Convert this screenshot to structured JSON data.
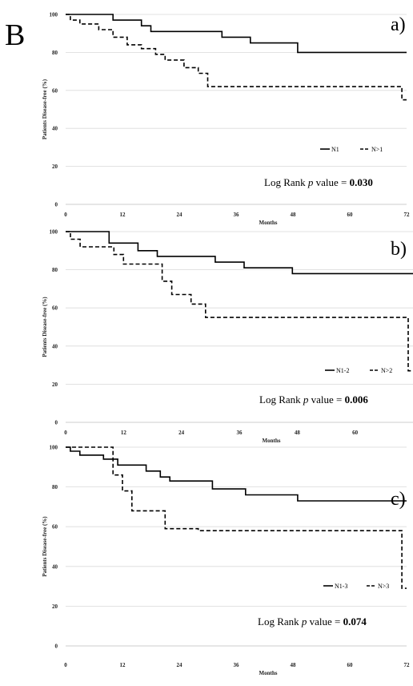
{
  "figure": {
    "label": "B"
  },
  "chart_data": [
    {
      "type": "line",
      "panel_label": "a)",
      "xlabel": "Months",
      "ylabel": "Patients Disease-free (%)",
      "xlim": [
        0,
        72
      ],
      "ylim": [
        0,
        100
      ],
      "xticks": [
        0,
        12,
        24,
        36,
        48,
        60,
        72
      ],
      "yticks": [
        0,
        20,
        40,
        60,
        80,
        100
      ],
      "grid": true,
      "legend_position": "bottom-right",
      "annotation": {
        "prefix": "Log Rank ",
        "p": "p",
        "middle": " value = ",
        "value": "0.030"
      },
      "series": [
        {
          "name": "N1",
          "style": "solid",
          "x": [
            0,
            10,
            10,
            16,
            16,
            18,
            18,
            33,
            33,
            39,
            39,
            49,
            49,
            72
          ],
          "y": [
            100,
            100,
            97,
            97,
            94,
            94,
            91,
            91,
            88,
            88,
            85,
            85,
            80,
            80
          ]
        },
        {
          "name": "N>1",
          "style": "dashed",
          "x": [
            0,
            1,
            1,
            3,
            3,
            7,
            7,
            10,
            10,
            13,
            13,
            16,
            16,
            19,
            19,
            21,
            21,
            25,
            25,
            28,
            28,
            30,
            30,
            71,
            71,
            72
          ],
          "y": [
            100,
            100,
            97,
            97,
            95,
            95,
            92,
            92,
            88,
            88,
            84,
            84,
            82,
            82,
            79,
            79,
            76,
            76,
            72,
            72,
            69,
            69,
            62,
            62,
            55,
            55
          ]
        }
      ]
    },
    {
      "type": "line",
      "panel_label": "b)",
      "xlabel": "Months",
      "ylabel": "Patients Disease-free (%)",
      "xlim": [
        0,
        72
      ],
      "ylim": [
        0,
        100
      ],
      "xticks": [
        0,
        12,
        24,
        36,
        48,
        60
      ],
      "yticks": [
        0,
        20,
        40,
        60,
        80,
        100
      ],
      "grid": true,
      "legend_position": "bottom-right",
      "annotation": {
        "prefix": "Log Rank ",
        "p": "p",
        "middle": " value = ",
        "value": "0.006"
      },
      "series": [
        {
          "name": "N1-2",
          "style": "solid",
          "x": [
            0,
            9,
            9,
            15,
            15,
            19,
            19,
            31,
            31,
            37,
            37,
            47,
            47,
            72
          ],
          "y": [
            100,
            100,
            94,
            94,
            90,
            90,
            87,
            87,
            84,
            84,
            81,
            81,
            78,
            78
          ]
        },
        {
          "name": "N>2",
          "style": "dashed",
          "x": [
            0,
            1,
            1,
            3,
            3,
            10,
            10,
            12,
            12,
            20,
            20,
            22,
            22,
            26,
            26,
            29,
            29,
            71,
            71,
            72
          ],
          "y": [
            100,
            100,
            96,
            96,
            92,
            92,
            88,
            88,
            83,
            83,
            74,
            74,
            67,
            67,
            62,
            62,
            55,
            55,
            27,
            27
          ]
        }
      ]
    },
    {
      "type": "line",
      "panel_label": "c)",
      "xlabel": "Months",
      "ylabel": "Patients Disease-free (%)",
      "xlim": [
        0,
        72
      ],
      "ylim": [
        0,
        100
      ],
      "xticks": [
        0,
        12,
        24,
        36,
        48,
        60,
        72
      ],
      "yticks": [
        0,
        20,
        40,
        60,
        80,
        100
      ],
      "grid": true,
      "legend_position": "bottom-right",
      "annotation": {
        "prefix": "Log Rank ",
        "p": "p",
        "middle": " value = ",
        "value": "0.074"
      },
      "series": [
        {
          "name": "N1-3",
          "style": "solid",
          "x": [
            0,
            1,
            1,
            3,
            3,
            8,
            8,
            11,
            11,
            17,
            17,
            20,
            20,
            22,
            22,
            31,
            31,
            38,
            38,
            49,
            49,
            72
          ],
          "y": [
            100,
            100,
            98,
            98,
            96,
            96,
            94,
            94,
            91,
            91,
            88,
            88,
            85,
            85,
            83,
            83,
            79,
            79,
            76,
            76,
            73,
            73
          ]
        },
        {
          "name": "N>3",
          "style": "dashed",
          "x": [
            0,
            10,
            10,
            12,
            12,
            14,
            14,
            21,
            21,
            28,
            28,
            71,
            71,
            72
          ],
          "y": [
            100,
            100,
            86,
            86,
            78,
            78,
            68,
            68,
            59,
            59,
            58,
            58,
            29,
            29
          ]
        }
      ]
    }
  ]
}
